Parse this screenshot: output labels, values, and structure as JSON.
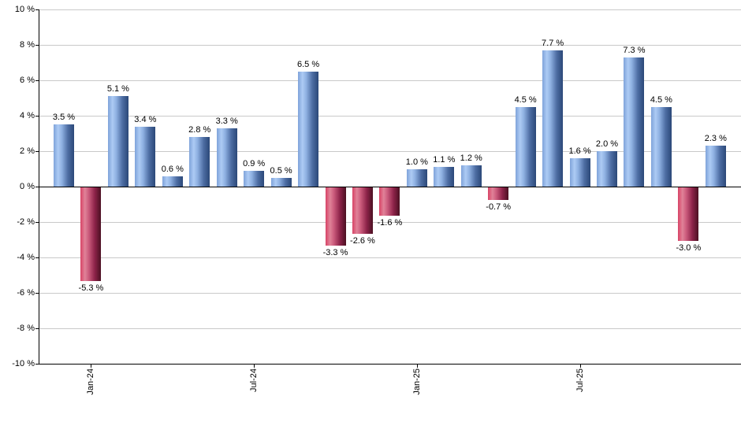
{
  "chart_data": {
    "type": "bar",
    "title": "",
    "xlabel": "",
    "ylabel": "",
    "ylim": [
      -10,
      10
    ],
    "grid": true,
    "values": [
      3.5,
      -5.3,
      5.1,
      3.4,
      0.6,
      2.8,
      3.3,
      0.9,
      0.5,
      6.5,
      -3.3,
      -2.6,
      -1.6,
      1.0,
      1.1,
      1.2,
      -0.7,
      4.5,
      7.7,
      1.6,
      2.0,
      7.3,
      4.5,
      -3.0,
      2.3
    ],
    "bar_labels": [
      "3.5 %",
      "-5.3 %",
      "5.1 %",
      "3.4 %",
      "0.6 %",
      "2.8 %",
      "3.3 %",
      "0.9 %",
      "0.5 %",
      "6.5 %",
      "-3.3 %",
      "-2.6 %",
      "-1.6 %",
      "1.0 %",
      "1.1 %",
      "1.2 %",
      "-0.7 %",
      "4.5 %",
      "7.7 %",
      "1.6 %",
      "2.0 %",
      "7.3 %",
      "4.5 %",
      "-3.0 %",
      "2.3 %"
    ],
    "y_tick_values": [
      10,
      8,
      6,
      4,
      2,
      0,
      -2,
      -4,
      -6,
      -8,
      -10
    ],
    "y_tick_labels": [
      "10 %",
      "8 %",
      "6 %",
      "4 %",
      "2 %",
      "0 %",
      "-2 %",
      "-4 %",
      "-6 %",
      "-8 %",
      "-10 %"
    ],
    "x_ticks": [
      {
        "bar_index": 1,
        "label": "Jan-24"
      },
      {
        "bar_index": 7,
        "label": "Jul-24"
      },
      {
        "bar_index": 13,
        "label": "Jan-25"
      },
      {
        "bar_index": 19,
        "label": "Jul-25"
      }
    ],
    "legend": null
  },
  "colors": {
    "positive_bar_light": "#adcbf4",
    "positive_bar_mid": "#7fa3da",
    "positive_bar_dark": "#2b4878",
    "negative_bar_light": "#e08298",
    "negative_bar_mid": "#d84366",
    "negative_bar_dark": "#4b1022",
    "gridline": "#c9c9c9",
    "axis": "#000000",
    "text": "#000000",
    "background": "#ffffff"
  }
}
